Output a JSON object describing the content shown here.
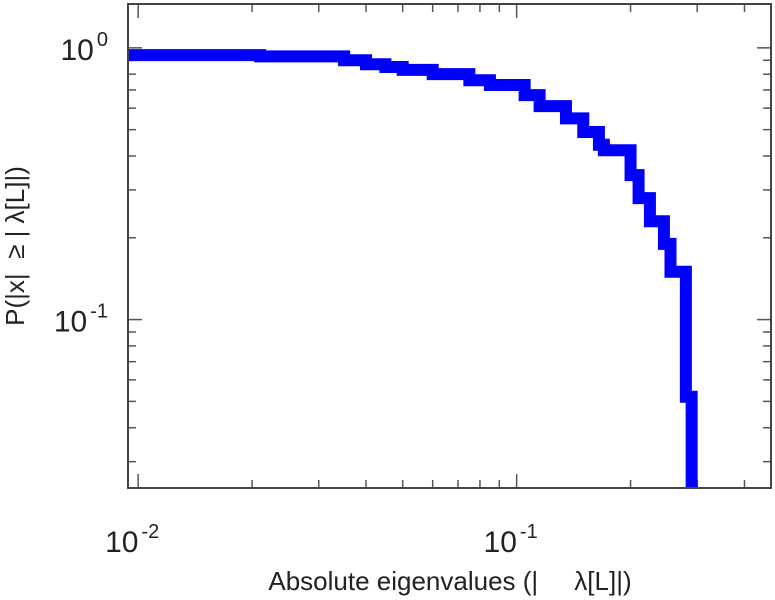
{
  "chart_data": {
    "type": "line",
    "xlabel": "Absolute eigenvalues (|     λ[L]|)",
    "ylabel": "P(|x|  ≥ | λ[L]|)",
    "x_scale": "log",
    "y_scale": "log",
    "xlim": [
      0.0094,
      0.47
    ],
    "ylim": [
      0.024,
      1.45
    ],
    "x_ticks": [
      {
        "value": 0.01,
        "base": "10",
        "exp": "-2"
      },
      {
        "value": 0.1,
        "base": "10",
        "exp": "-1"
      }
    ],
    "y_ticks": [
      {
        "value": 1,
        "base": "10",
        "exp": "0"
      },
      {
        "value": 0.1,
        "base": "10",
        "exp": "-1"
      }
    ],
    "grid": false,
    "series": [
      {
        "color": "#0000ff",
        "step": true,
        "x": [
          0.0094,
          0.021,
          0.035,
          0.04,
          0.045,
          0.05,
          0.06,
          0.075,
          0.085,
          0.105,
          0.115,
          0.135,
          0.15,
          0.165,
          0.17,
          0.2,
          0.21,
          0.225,
          0.245,
          0.255,
          0.28,
          0.29
        ],
        "y": [
          0.94,
          0.93,
          0.9,
          0.87,
          0.85,
          0.83,
          0.8,
          0.76,
          0.73,
          0.67,
          0.61,
          0.55,
          0.49,
          0.44,
          0.42,
          0.34,
          0.28,
          0.23,
          0.19,
          0.15,
          0.052,
          0.024
        ]
      }
    ]
  }
}
